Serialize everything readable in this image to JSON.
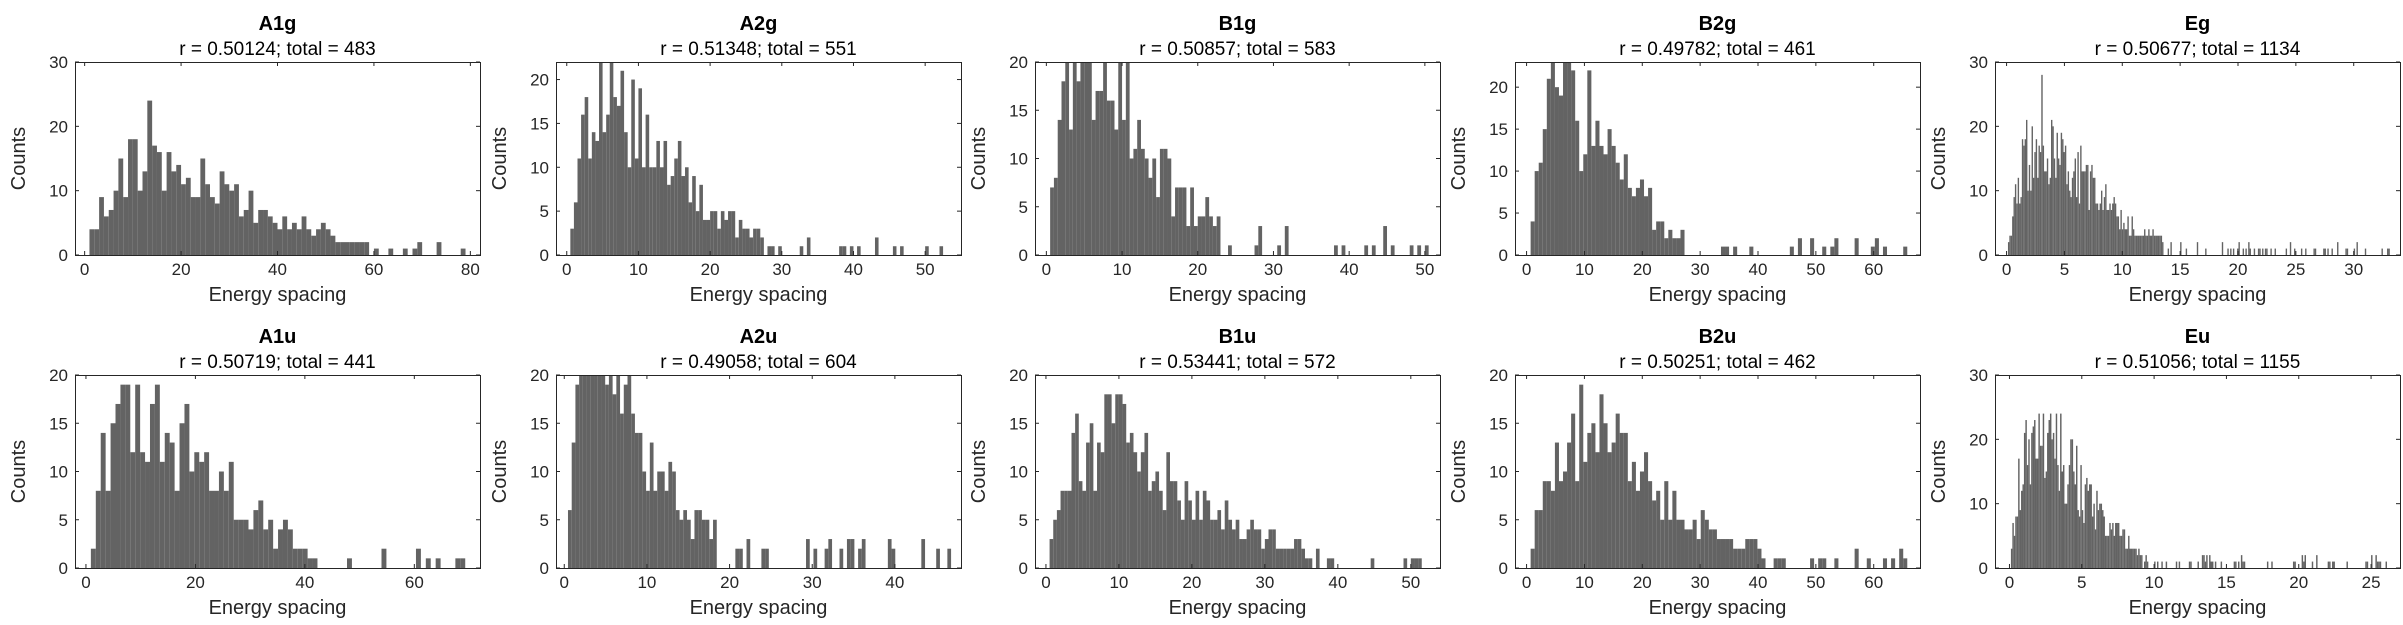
{
  "chart_data": [
    {
      "type": "bar",
      "title": "A1g",
      "subtitle": "r = 0.50124; total = 483",
      "xlabel": "Energy spacing",
      "ylabel": "Counts",
      "xlim": [
        -2,
        82
      ],
      "ylim": [
        0,
        30
      ],
      "xticks": [
        0,
        20,
        40,
        60,
        80
      ],
      "yticks": [
        0,
        10,
        20,
        30
      ],
      "bin_width": 1,
      "peak_x": 13,
      "tail_max": 78,
      "count_max": 24,
      "total": 483,
      "color": "#636363"
    },
    {
      "type": "bar",
      "title": "A2g",
      "subtitle": "r = 0.51348; total = 551",
      "xlabel": "Energy spacing",
      "ylabel": "Counts",
      "xlim": [
        -1.5,
        55
      ],
      "ylim": [
        0,
        22
      ],
      "xticks": [
        0,
        10,
        20,
        30,
        40,
        50
      ],
      "yticks": [
        0,
        5,
        10,
        15,
        20
      ],
      "bin_width": 0.5,
      "peak_x": 6,
      "tail_max": 52,
      "count_max": 22,
      "total": 551,
      "color": "#636363"
    },
    {
      "type": "bar",
      "title": "B1g",
      "subtitle": "r = 0.50857; total = 583",
      "xlabel": "Energy spacing",
      "ylabel": "Counts",
      "xlim": [
        -1.5,
        52
      ],
      "ylim": [
        0,
        20
      ],
      "xticks": [
        0,
        10,
        20,
        30,
        40,
        50
      ],
      "yticks": [
        0,
        5,
        10,
        15,
        20
      ],
      "bin_width": 0.5,
      "peak_x": 5,
      "tail_max": 50,
      "count_max": 20,
      "total": 583,
      "color": "#636363"
    },
    {
      "type": "bar",
      "title": "B2g",
      "subtitle": "r = 0.49782; total = 461",
      "xlabel": "Energy spacing",
      "ylabel": "Counts",
      "xlim": [
        -2,
        68
      ],
      "ylim": [
        0,
        23
      ],
      "xticks": [
        0,
        10,
        20,
        30,
        40,
        50,
        60
      ],
      "yticks": [
        0,
        5,
        10,
        15,
        20
      ],
      "bin_width": 0.7,
      "peak_x": 6,
      "tail_max": 65,
      "count_max": 23,
      "total": 461,
      "color": "#636363"
    },
    {
      "type": "bar",
      "title": "Eg",
      "subtitle": "r = 0.50677; total = 1134",
      "xlabel": "Energy spacing",
      "ylabel": "Counts",
      "xlim": [
        -1,
        34
      ],
      "ylim": [
        0,
        30
      ],
      "xticks": [
        0,
        5,
        10,
        15,
        20,
        25,
        30
      ],
      "yticks": [
        0,
        10,
        20,
        30
      ],
      "bin_width": 0.12,
      "peak_x": 3,
      "tail_max": 33,
      "count_max": 28,
      "total": 1134,
      "color": "#636363"
    },
    {
      "type": "bar",
      "title": "A1u",
      "subtitle": "r = 0.50719; total = 441",
      "xlabel": "Energy spacing",
      "ylabel": "Counts",
      "xlim": [
        -2,
        72
      ],
      "ylim": [
        0,
        20
      ],
      "xticks": [
        0,
        20,
        40,
        60
      ],
      "yticks": [
        0,
        5,
        10,
        15,
        20
      ],
      "bin_width": 0.9,
      "peak_x": 9,
      "tail_max": 68,
      "count_max": 19,
      "total": 441,
      "color": "#636363"
    },
    {
      "type": "bar",
      "title": "A2u",
      "subtitle": "r = 0.49058; total = 604",
      "xlabel": "Energy spacing",
      "ylabel": "Counts",
      "xlim": [
        -1,
        48
      ],
      "ylim": [
        0,
        20
      ],
      "xticks": [
        0,
        10,
        20,
        30,
        40
      ],
      "yticks": [
        0,
        5,
        10,
        15,
        20
      ],
      "bin_width": 0.45,
      "peak_x": 4,
      "tail_max": 46,
      "count_max": 20,
      "total": 604,
      "color": "#636363"
    },
    {
      "type": "bar",
      "title": "B1u",
      "subtitle": "r = 0.53441; total = 572",
      "xlabel": "Energy spacing",
      "ylabel": "Counts",
      "xlim": [
        -1.5,
        54
      ],
      "ylim": [
        0,
        20
      ],
      "xticks": [
        0,
        10,
        20,
        30,
        40,
        50
      ],
      "yticks": [
        0,
        5,
        10,
        15,
        20
      ],
      "bin_width": 0.5,
      "peak_x": 8,
      "tail_max": 51,
      "count_max": 18,
      "total": 572,
      "color": "#636363"
    },
    {
      "type": "bar",
      "title": "B2u",
      "subtitle": "r = 0.50251; total = 462",
      "xlabel": "Energy spacing",
      "ylabel": "Counts",
      "xlim": [
        -2,
        68
      ],
      "ylim": [
        0,
        20
      ],
      "xticks": [
        0,
        10,
        20,
        30,
        40,
        50,
        60
      ],
      "yticks": [
        0,
        5,
        10,
        15,
        20
      ],
      "bin_width": 0.7,
      "peak_x": 9,
      "tail_max": 65,
      "count_max": 19,
      "total": 462,
      "color": "#636363"
    },
    {
      "type": "bar",
      "title": "Eu",
      "subtitle": "r = 0.51056; total = 1155",
      "xlabel": "Energy spacing",
      "ylabel": "Counts",
      "xlim": [
        -1,
        27
      ],
      "ylim": [
        0,
        30
      ],
      "xticks": [
        0,
        5,
        10,
        15,
        20,
        25
      ],
      "yticks": [
        0,
        10,
        20,
        30
      ],
      "bin_width": 0.1,
      "peak_x": 2,
      "tail_max": 26,
      "count_max": 24,
      "total": 1155,
      "color": "#636363"
    }
  ]
}
